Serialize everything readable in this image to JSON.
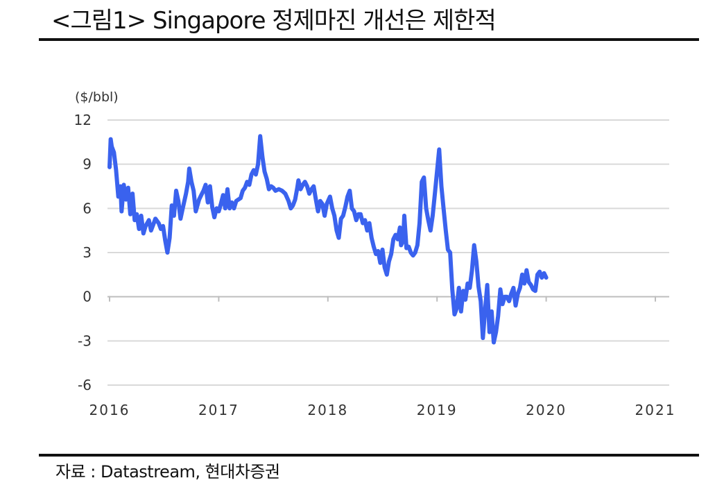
{
  "header": {
    "title": "<그림1> Singapore 정제마진 개선은 제한적"
  },
  "footer": {
    "source": "자료 : Datastream, 현대차증권"
  },
  "chart_data": {
    "type": "line",
    "unit_label": "($/bbl)",
    "ylim": [
      -6,
      12
    ],
    "yticks": [
      12,
      9,
      6,
      3,
      0,
      -3,
      -6
    ],
    "xlim": [
      2016.0,
      2021.0
    ],
    "xticks": [
      2016,
      2017,
      2018,
      2019,
      2020,
      2021
    ],
    "grid": "horizontal",
    "line_color": "#3a62ee",
    "series": [
      {
        "points": [
          [
            2016.0,
            8.8
          ],
          [
            2016.01,
            10.7
          ],
          [
            2016.02,
            10.2
          ],
          [
            2016.04,
            9.8
          ],
          [
            2016.06,
            8.6
          ],
          [
            2016.08,
            6.8
          ],
          [
            2016.1,
            7.5
          ],
          [
            2016.11,
            5.8
          ],
          [
            2016.13,
            7.6
          ],
          [
            2016.15,
            6.6
          ],
          [
            2016.17,
            7.4
          ],
          [
            2016.19,
            5.6
          ],
          [
            2016.21,
            7.0
          ],
          [
            2016.23,
            5.2
          ],
          [
            2016.25,
            5.6
          ],
          [
            2016.27,
            4.6
          ],
          [
            2016.29,
            5.5
          ],
          [
            2016.31,
            4.3
          ],
          [
            2016.33,
            4.8
          ],
          [
            2016.36,
            5.2
          ],
          [
            2016.38,
            4.5
          ],
          [
            2016.4,
            4.9
          ],
          [
            2016.42,
            5.3
          ],
          [
            2016.45,
            5.0
          ],
          [
            2016.47,
            4.6
          ],
          [
            2016.49,
            4.8
          ],
          [
            2016.51,
            3.8
          ],
          [
            2016.53,
            3.0
          ],
          [
            2016.55,
            4.0
          ],
          [
            2016.57,
            6.2
          ],
          [
            2016.59,
            5.5
          ],
          [
            2016.61,
            7.2
          ],
          [
            2016.63,
            6.5
          ],
          [
            2016.65,
            5.3
          ],
          [
            2016.67,
            6.0
          ],
          [
            2016.7,
            7.0
          ],
          [
            2016.72,
            7.8
          ],
          [
            2016.73,
            8.7
          ],
          [
            2016.75,
            7.8
          ],
          [
            2016.77,
            7.2
          ],
          [
            2016.79,
            5.8
          ],
          [
            2016.82,
            6.6
          ],
          [
            2016.84,
            6.9
          ],
          [
            2016.86,
            7.2
          ],
          [
            2016.88,
            7.6
          ],
          [
            2016.9,
            6.4
          ],
          [
            2016.92,
            7.5
          ],
          [
            2016.94,
            6.1
          ],
          [
            2016.96,
            5.4
          ],
          [
            2016.98,
            6.0
          ],
          [
            2017.0,
            5.8
          ],
          [
            2017.02,
            6.3
          ],
          [
            2017.04,
            6.9
          ],
          [
            2017.06,
            6.0
          ],
          [
            2017.08,
            7.3
          ],
          [
            2017.1,
            6.0
          ],
          [
            2017.12,
            6.4
          ],
          [
            2017.14,
            6.0
          ],
          [
            2017.16,
            6.5
          ],
          [
            2017.18,
            6.6
          ],
          [
            2017.2,
            6.7
          ],
          [
            2017.22,
            7.2
          ],
          [
            2017.24,
            7.4
          ],
          [
            2017.26,
            7.8
          ],
          [
            2017.28,
            7.6
          ],
          [
            2017.3,
            8.3
          ],
          [
            2017.32,
            8.6
          ],
          [
            2017.34,
            8.3
          ],
          [
            2017.36,
            9.0
          ],
          [
            2017.38,
            10.9
          ],
          [
            2017.4,
            9.5
          ],
          [
            2017.42,
            8.5
          ],
          [
            2017.44,
            8.0
          ],
          [
            2017.46,
            7.3
          ],
          [
            2017.48,
            7.5
          ],
          [
            2017.5,
            7.4
          ],
          [
            2017.52,
            7.2
          ],
          [
            2017.55,
            7.3
          ],
          [
            2017.58,
            7.2
          ],
          [
            2017.61,
            7.0
          ],
          [
            2017.64,
            6.5
          ],
          [
            2017.66,
            6.0
          ],
          [
            2017.68,
            6.2
          ],
          [
            2017.7,
            6.6
          ],
          [
            2017.72,
            7.4
          ],
          [
            2017.73,
            7.9
          ],
          [
            2017.75,
            7.3
          ],
          [
            2017.77,
            7.6
          ],
          [
            2017.79,
            7.8
          ],
          [
            2017.81,
            7.5
          ],
          [
            2017.83,
            7.0
          ],
          [
            2017.85,
            7.3
          ],
          [
            2017.87,
            7.5
          ],
          [
            2017.89,
            6.6
          ],
          [
            2017.91,
            5.8
          ],
          [
            2017.93,
            6.5
          ],
          [
            2017.95,
            6.3
          ],
          [
            2017.97,
            5.5
          ],
          [
            2017.99,
            6.3
          ],
          [
            2018.02,
            6.8
          ],
          [
            2018.04,
            6.0
          ],
          [
            2018.06,
            5.5
          ],
          [
            2018.08,
            4.5
          ],
          [
            2018.1,
            4.0
          ],
          [
            2018.12,
            5.3
          ],
          [
            2018.14,
            5.5
          ],
          [
            2018.16,
            6.1
          ],
          [
            2018.18,
            6.8
          ],
          [
            2018.2,
            7.2
          ],
          [
            2018.22,
            6.0
          ],
          [
            2018.24,
            5.8
          ],
          [
            2018.26,
            5.2
          ],
          [
            2018.28,
            5.6
          ],
          [
            2018.3,
            5.6
          ],
          [
            2018.32,
            5.0
          ],
          [
            2018.34,
            5.2
          ],
          [
            2018.36,
            4.5
          ],
          [
            2018.38,
            5.0
          ],
          [
            2018.4,
            4.0
          ],
          [
            2018.42,
            3.4
          ],
          [
            2018.44,
            2.9
          ],
          [
            2018.46,
            3.1
          ],
          [
            2018.48,
            2.3
          ],
          [
            2018.5,
            3.2
          ],
          [
            2018.52,
            2.0
          ],
          [
            2018.54,
            1.5
          ],
          [
            2018.56,
            2.4
          ],
          [
            2018.58,
            2.9
          ],
          [
            2018.6,
            3.9
          ],
          [
            2018.62,
            4.2
          ],
          [
            2018.64,
            3.9
          ],
          [
            2018.66,
            4.7
          ],
          [
            2018.67,
            3.5
          ],
          [
            2018.69,
            3.8
          ],
          [
            2018.7,
            5.5
          ],
          [
            2018.72,
            3.3
          ],
          [
            2018.74,
            3.4
          ],
          [
            2018.76,
            3.0
          ],
          [
            2018.78,
            2.8
          ],
          [
            2018.8,
            3.0
          ],
          [
            2018.82,
            3.5
          ],
          [
            2018.84,
            5.0
          ],
          [
            2018.86,
            7.8
          ],
          [
            2018.88,
            8.1
          ],
          [
            2018.9,
            6.0
          ],
          [
            2018.92,
            5.2
          ],
          [
            2018.94,
            4.5
          ],
          [
            2018.96,
            5.5
          ],
          [
            2018.98,
            7.0
          ],
          [
            2019.0,
            8.5
          ],
          [
            2019.02,
            10.0
          ],
          [
            2019.04,
            7.5
          ],
          [
            2019.06,
            6.0
          ],
          [
            2019.08,
            4.5
          ],
          [
            2019.1,
            3.2
          ],
          [
            2019.12,
            3.0
          ],
          [
            2019.14,
            0.5
          ],
          [
            2019.16,
            -1.2
          ],
          [
            2019.18,
            -0.8
          ],
          [
            2019.2,
            0.6
          ],
          [
            2019.22,
            -1.0
          ],
          [
            2019.24,
            0.4
          ],
          [
            2019.26,
            -0.2
          ],
          [
            2019.28,
            0.9
          ],
          [
            2019.3,
            0.6
          ],
          [
            2019.32,
            1.8
          ],
          [
            2019.34,
            3.5
          ],
          [
            2019.36,
            2.4
          ],
          [
            2019.38,
            0.7
          ],
          [
            2019.4,
            -0.3
          ],
          [
            2019.42,
            -2.8
          ],
          [
            2019.44,
            -0.9
          ],
          [
            2019.46,
            0.8
          ],
          [
            2019.48,
            -2.4
          ],
          [
            2019.5,
            -1.0
          ],
          [
            2019.52,
            -3.1
          ],
          [
            2019.54,
            -2.4
          ],
          [
            2019.56,
            -1.3
          ],
          [
            2019.58,
            0.5
          ],
          [
            2019.6,
            -0.5
          ],
          [
            2019.62,
            0.0
          ],
          [
            2019.64,
            0.0
          ],
          [
            2019.66,
            -0.3
          ],
          [
            2019.68,
            0.2
          ],
          [
            2019.7,
            0.6
          ],
          [
            2019.72,
            -0.6
          ],
          [
            2019.74,
            0.2
          ],
          [
            2019.76,
            0.6
          ],
          [
            2019.78,
            1.5
          ],
          [
            2019.8,
            0.9
          ],
          [
            2019.82,
            1.8
          ],
          [
            2019.84,
            1.0
          ],
          [
            2019.86,
            0.8
          ],
          [
            2019.88,
            0.5
          ],
          [
            2019.9,
            0.4
          ],
          [
            2019.92,
            1.5
          ],
          [
            2019.94,
            1.7
          ],
          [
            2019.96,
            1.3
          ],
          [
            2019.98,
            1.6
          ],
          [
            2020.0,
            1.3
          ]
        ]
      }
    ]
  }
}
